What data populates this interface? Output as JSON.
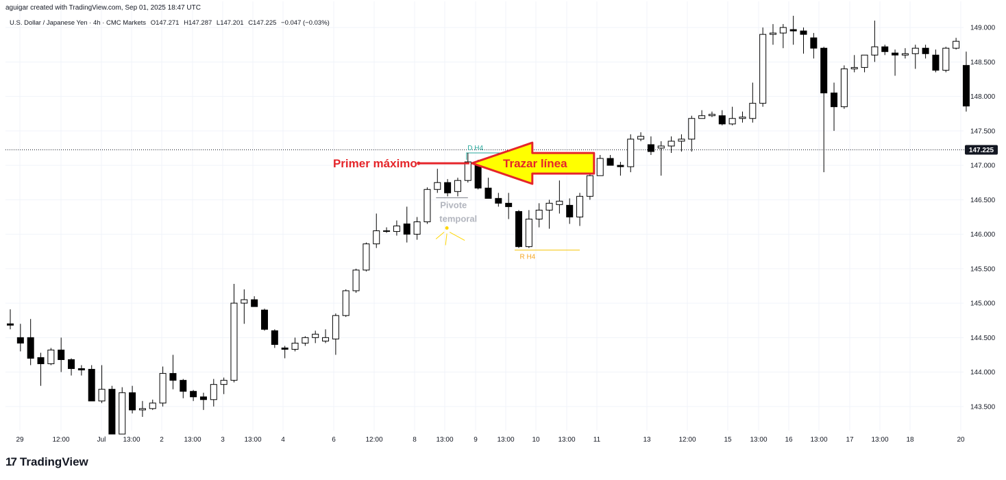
{
  "header": {
    "credit": "aguigar created with TradingView.com, Sep 01, 2025 18:47 UTC",
    "symbol": "U.S. Dollar / Japanese Yen · 4h · CMC Markets",
    "open": "O147.271",
    "high": "H147.287",
    "low": "L147.201",
    "close": "C147.225",
    "change": "−0.047 (−0.03%)"
  },
  "branding": {
    "name": "TradingView",
    "logo": "17"
  },
  "chart_data": {
    "type": "candlestick",
    "y_range": [
      143.15,
      149.2
    ],
    "y_ticks": [
      "143.500",
      "144.000",
      "144.500",
      "145.000",
      "145.500",
      "146.000",
      "146.500",
      "147.000",
      "147.500",
      "148.000",
      "148.500",
      "149.000"
    ],
    "x_ticks": [
      "29",
      "12:00",
      "Jul",
      "13:00",
      "2",
      "13:00",
      "3",
      "13:00",
      "4",
      "6",
      "12:00",
      "8",
      "13:00",
      "9",
      "13:00",
      "10",
      "13:00",
      "11",
      "13",
      "12:00",
      "15",
      "13:00",
      "16",
      "13:00",
      "17",
      "13:00",
      "18",
      "20"
    ],
    "current_price": 147.225,
    "current_price_label": "147.225",
    "candles": [
      {
        "o": 144.7,
        "h": 144.91,
        "l": 144.62,
        "c": 144.68
      },
      {
        "o": 144.5,
        "h": 144.7,
        "l": 144.3,
        "c": 144.42
      },
      {
        "o": 144.5,
        "h": 144.77,
        "l": 144.1,
        "c": 144.2
      },
      {
        "o": 144.21,
        "h": 144.28,
        "l": 143.8,
        "c": 144.12
      },
      {
        "o": 144.12,
        "h": 144.35,
        "l": 144.1,
        "c": 144.32
      },
      {
        "o": 144.32,
        "h": 144.5,
        "l": 144.0,
        "c": 144.18
      },
      {
        "o": 144.18,
        "h": 144.2,
        "l": 143.95,
        "c": 144.05
      },
      {
        "o": 144.05,
        "h": 144.1,
        "l": 143.95,
        "c": 144.03
      },
      {
        "o": 144.04,
        "h": 144.1,
        "l": 143.6,
        "c": 143.58
      },
      {
        "o": 143.58,
        "h": 144.1,
        "l": 143.55,
        "c": 143.75
      },
      {
        "o": 143.75,
        "h": 143.8,
        "l": 143.1,
        "c": 143.1
      },
      {
        "o": 143.1,
        "h": 143.78,
        "l": 143.1,
        "c": 143.7
      },
      {
        "o": 143.7,
        "h": 143.8,
        "l": 143.4,
        "c": 143.45
      },
      {
        "o": 143.45,
        "h": 143.58,
        "l": 143.35,
        "c": 143.47
      },
      {
        "o": 143.47,
        "h": 143.6,
        "l": 143.45,
        "c": 143.55
      },
      {
        "o": 143.55,
        "h": 144.08,
        "l": 143.5,
        "c": 143.98
      },
      {
        "o": 143.98,
        "h": 144.25,
        "l": 143.75,
        "c": 143.88
      },
      {
        "o": 143.88,
        "h": 143.9,
        "l": 143.62,
        "c": 143.72
      },
      {
        "o": 143.72,
        "h": 143.74,
        "l": 143.58,
        "c": 143.64
      },
      {
        "o": 143.64,
        "h": 143.7,
        "l": 143.45,
        "c": 143.6
      },
      {
        "o": 143.6,
        "h": 143.9,
        "l": 143.5,
        "c": 143.82
      },
      {
        "o": 143.82,
        "h": 143.92,
        "l": 143.68,
        "c": 143.88
      },
      {
        "o": 143.88,
        "h": 145.28,
        "l": 143.85,
        "c": 145.0
      },
      {
        "o": 145.0,
        "h": 145.2,
        "l": 144.7,
        "c": 145.05
      },
      {
        "o": 145.05,
        "h": 145.1,
        "l": 144.95,
        "c": 144.95
      },
      {
        "o": 144.9,
        "h": 144.92,
        "l": 144.6,
        "c": 144.62
      },
      {
        "o": 144.6,
        "h": 144.62,
        "l": 144.35,
        "c": 144.4
      },
      {
        "o": 144.35,
        "h": 144.38,
        "l": 144.2,
        "c": 144.33
      },
      {
        "o": 144.33,
        "h": 144.5,
        "l": 144.3,
        "c": 144.42
      },
      {
        "o": 144.42,
        "h": 144.52,
        "l": 144.38,
        "c": 144.5
      },
      {
        "o": 144.5,
        "h": 144.6,
        "l": 144.42,
        "c": 144.55
      },
      {
        "o": 144.45,
        "h": 144.62,
        "l": 144.42,
        "c": 144.5
      },
      {
        "o": 144.48,
        "h": 144.85,
        "l": 144.25,
        "c": 144.82
      },
      {
        "o": 144.82,
        "h": 145.2,
        "l": 144.8,
        "c": 145.18
      },
      {
        "o": 145.18,
        "h": 145.5,
        "l": 145.15,
        "c": 145.48
      },
      {
        "o": 145.48,
        "h": 145.88,
        "l": 145.46,
        "c": 145.86
      },
      {
        "o": 145.86,
        "h": 146.3,
        "l": 145.8,
        "c": 146.05
      },
      {
        "o": 146.05,
        "h": 146.1,
        "l": 146.02,
        "c": 146.04
      },
      {
        "o": 146.04,
        "h": 146.2,
        "l": 145.98,
        "c": 146.12
      },
      {
        "o": 146.15,
        "h": 146.4,
        "l": 145.88,
        "c": 146.0
      },
      {
        "o": 146.0,
        "h": 146.25,
        "l": 145.92,
        "c": 146.18
      },
      {
        "o": 146.18,
        "h": 146.68,
        "l": 146.15,
        "c": 146.65
      },
      {
        "o": 146.65,
        "h": 146.95,
        "l": 146.6,
        "c": 146.75
      },
      {
        "o": 146.75,
        "h": 146.8,
        "l": 146.55,
        "c": 146.6
      },
      {
        "o": 146.62,
        "h": 146.82,
        "l": 146.55,
        "c": 146.78
      },
      {
        "o": 146.78,
        "h": 147.18,
        "l": 146.75,
        "c": 147.05
      },
      {
        "o": 147.05,
        "h": 147.08,
        "l": 146.65,
        "c": 146.67
      },
      {
        "o": 146.67,
        "h": 146.82,
        "l": 146.55,
        "c": 146.52
      },
      {
        "o": 146.52,
        "h": 146.6,
        "l": 146.4,
        "c": 146.45
      },
      {
        "o": 146.45,
        "h": 146.6,
        "l": 146.22,
        "c": 146.4
      },
      {
        "o": 146.33,
        "h": 146.35,
        "l": 145.8,
        "c": 145.82
      },
      {
        "o": 145.82,
        "h": 146.35,
        "l": 145.8,
        "c": 146.22
      },
      {
        "o": 146.22,
        "h": 146.45,
        "l": 146.1,
        "c": 146.35
      },
      {
        "o": 146.35,
        "h": 146.5,
        "l": 146.08,
        "c": 146.45
      },
      {
        "o": 146.43,
        "h": 146.78,
        "l": 146.3,
        "c": 146.48
      },
      {
        "o": 146.42,
        "h": 146.52,
        "l": 146.15,
        "c": 146.25
      },
      {
        "o": 146.25,
        "h": 146.6,
        "l": 146.12,
        "c": 146.55
      },
      {
        "o": 146.55,
        "h": 146.9,
        "l": 146.5,
        "c": 146.85
      },
      {
        "o": 146.85,
        "h": 147.15,
        "l": 146.85,
        "c": 147.1
      },
      {
        "o": 147.1,
        "h": 147.15,
        "l": 147.0,
        "c": 147.0
      },
      {
        "o": 147.0,
        "h": 147.05,
        "l": 146.85,
        "c": 146.98
      },
      {
        "o": 146.98,
        "h": 147.45,
        "l": 146.9,
        "c": 147.38
      },
      {
        "o": 147.38,
        "h": 147.48,
        "l": 147.35,
        "c": 147.42
      },
      {
        "o": 147.3,
        "h": 147.42,
        "l": 147.15,
        "c": 147.2
      },
      {
        "o": 147.25,
        "h": 147.35,
        "l": 146.85,
        "c": 147.28
      },
      {
        "o": 147.28,
        "h": 147.42,
        "l": 147.18,
        "c": 147.35
      },
      {
        "o": 147.35,
        "h": 147.45,
        "l": 147.2,
        "c": 147.38
      },
      {
        "o": 147.38,
        "h": 147.72,
        "l": 147.2,
        "c": 147.68
      },
      {
        "o": 147.68,
        "h": 147.8,
        "l": 147.68,
        "c": 147.72
      },
      {
        "o": 147.72,
        "h": 147.78,
        "l": 147.7,
        "c": 147.74
      },
      {
        "o": 147.72,
        "h": 147.8,
        "l": 147.58,
        "c": 147.6
      },
      {
        "o": 147.6,
        "h": 147.85,
        "l": 147.58,
        "c": 147.68
      },
      {
        "o": 147.68,
        "h": 147.78,
        "l": 147.62,
        "c": 147.7
      },
      {
        "o": 147.68,
        "h": 148.2,
        "l": 147.62,
        "c": 147.9
      },
      {
        "o": 147.9,
        "h": 149.0,
        "l": 147.85,
        "c": 148.9
      },
      {
        "o": 148.9,
        "h": 149.05,
        "l": 148.75,
        "c": 148.92
      },
      {
        "o": 148.92,
        "h": 149.05,
        "l": 148.7,
        "c": 149.0
      },
      {
        "o": 148.97,
        "h": 149.17,
        "l": 148.75,
        "c": 148.95
      },
      {
        "o": 148.95,
        "h": 149.0,
        "l": 148.62,
        "c": 148.9
      },
      {
        "o": 148.85,
        "h": 148.92,
        "l": 148.55,
        "c": 148.7
      },
      {
        "o": 148.7,
        "h": 148.72,
        "l": 146.9,
        "c": 148.05
      },
      {
        "o": 148.05,
        "h": 148.2,
        "l": 147.5,
        "c": 147.85
      },
      {
        "o": 147.85,
        "h": 148.45,
        "l": 147.82,
        "c": 148.4
      },
      {
        "o": 148.4,
        "h": 148.6,
        "l": 148.35,
        "c": 148.42
      },
      {
        "o": 148.42,
        "h": 148.6,
        "l": 148.35,
        "c": 148.6
      },
      {
        "o": 148.6,
        "h": 149.1,
        "l": 148.5,
        "c": 148.72
      },
      {
        "o": 148.72,
        "h": 148.75,
        "l": 148.6,
        "c": 148.65
      },
      {
        "o": 148.63,
        "h": 148.68,
        "l": 148.3,
        "c": 148.6
      },
      {
        "o": 148.6,
        "h": 148.7,
        "l": 148.55,
        "c": 148.62
      },
      {
        "o": 148.62,
        "h": 148.75,
        "l": 148.4,
        "c": 148.7
      },
      {
        "o": 148.7,
        "h": 148.75,
        "l": 148.55,
        "c": 148.62
      },
      {
        "o": 148.6,
        "h": 148.68,
        "l": 148.35,
        "c": 148.38
      },
      {
        "o": 148.38,
        "h": 148.72,
        "l": 148.35,
        "c": 148.7
      },
      {
        "o": 148.7,
        "h": 148.85,
        "l": 148.68,
        "c": 148.8
      },
      {
        "o": 148.45,
        "h": 148.65,
        "l": 147.78,
        "c": 147.86
      }
    ],
    "annotations": {
      "primer_maximo": "Primer máximo",
      "trazar_linea": "Trazar línea",
      "pivote": "Pivote",
      "temporal": "temporal",
      "d_h4": "D H4",
      "r_h4": "R H4",
      "d_level": 147.18,
      "r_level": 145.77
    },
    "colors": {
      "red": "#e5252a",
      "yellow": "#ffff00",
      "teal": "#26a69a",
      "orange": "#f5a623",
      "pivot_dot": "#ffd600",
      "pivot_text": "#b2b5be"
    }
  }
}
